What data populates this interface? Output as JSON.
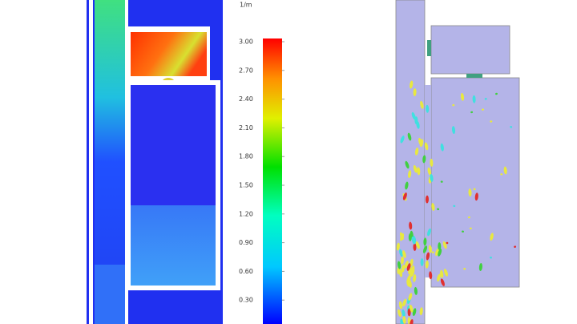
{
  "colorbar": {
    "unit": "1/m",
    "lim": [
      0,
      3
    ],
    "ticks": [
      {
        "value": 3,
        "label": "3.00"
      },
      {
        "value": 2.7,
        "label": "2.70"
      },
      {
        "value": 2.4,
        "label": "2.40"
      },
      {
        "value": 2.1,
        "label": "2.10"
      },
      {
        "value": 1.8,
        "label": "1.80"
      },
      {
        "value": 1.5,
        "label": "1.50"
      },
      {
        "value": 1.2,
        "label": "1.20"
      },
      {
        "value": 0.9,
        "label": "0.90"
      },
      {
        "value": 0.6,
        "label": "0.60"
      },
      {
        "value": 0.3,
        "label": "0.30"
      }
    ]
  }
}
